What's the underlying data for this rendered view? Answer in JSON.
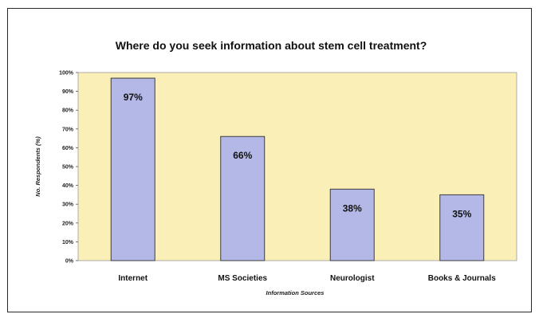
{
  "chart_data": {
    "type": "bar",
    "title": "Where do you seek information about stem cell treatment?",
    "xlabel": "Information Sources",
    "ylabel": "No. Respondents (%)",
    "categories": [
      "Internet",
      "MS Societies",
      "Neurologist",
      "Books & Journals"
    ],
    "values": [
      97,
      66,
      38,
      35
    ],
    "value_labels": [
      "97%",
      "66%",
      "38%",
      "35%"
    ],
    "y_ticks": [
      0,
      10,
      20,
      30,
      40,
      50,
      60,
      70,
      80,
      90,
      100
    ],
    "y_tick_labels": [
      "0%",
      "10%",
      "20%",
      "30%",
      "40%",
      "50%",
      "60%",
      "70%",
      "80%",
      "90%",
      "100%"
    ],
    "ylim": [
      0,
      100
    ],
    "grid": false,
    "legend": "none",
    "colors": {
      "plot_background": "#fbefb8",
      "bar_fill": "#b3b8e6",
      "bar_stroke": "#3c3c3c"
    }
  }
}
